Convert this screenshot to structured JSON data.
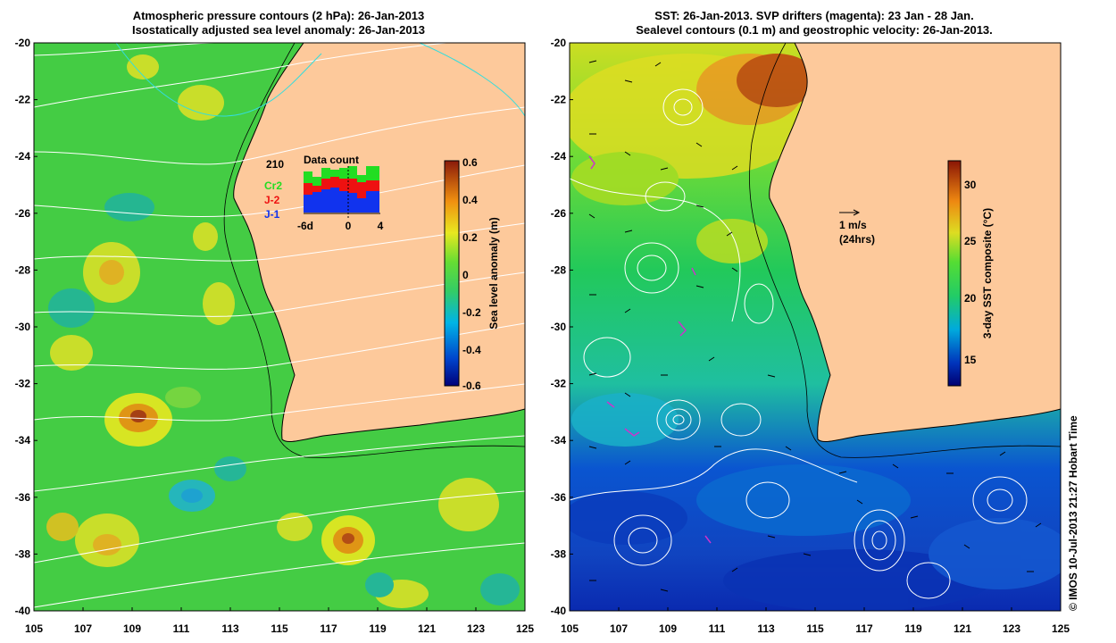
{
  "left_panel": {
    "title_line1": "Atmospheric pressure contours (2 hPa): 26-Jan-2013",
    "title_line2": "Isostatically adjusted sea level anomaly: 26-Jan-2013",
    "colorbar": {
      "label": "Sea level anomaly (m)",
      "ticks": [
        "0.6",
        "0.4",
        "0.2",
        "0",
        "-0.2",
        "-0.4",
        "-0.6"
      ],
      "range": [
        -0.6,
        0.6
      ]
    },
    "data_count_inset": {
      "title": "Data count",
      "ymax_label": "210",
      "x_tick_labels": [
        "-6d",
        "0",
        "4"
      ],
      "legend": [
        {
          "label": "Cr2",
          "color": "#22dd22"
        },
        {
          "label": "J-2",
          "color": "#ee1111"
        },
        {
          "label": "J-1",
          "color": "#1133ee"
        }
      ]
    }
  },
  "right_panel": {
    "title_line1": "SST: 26-Jan-2013. SVP drifters (magenta): 23 Jan - 28 Jan.",
    "title_line2": "Sealevel contours (0.1 m) and geostrophic velocity: 26-Jan-2013.",
    "velocity_scale_label": "1 m/s",
    "velocity_scale_sublabel": "(24hrs)",
    "colorbar": {
      "label": "3-day SST composite (°C)",
      "ticks": [
        "30",
        "25",
        "20",
        "15"
      ],
      "range": [
        12,
        32
      ]
    }
  },
  "axes": {
    "x_ticks": [
      "105",
      "107",
      "109",
      "111",
      "113",
      "115",
      "117",
      "119",
      "121",
      "123",
      "125"
    ],
    "y_ticks": [
      "-20",
      "-22",
      "-24",
      "-26",
      "-28",
      "-30",
      "-32",
      "-34",
      "-36",
      "-38",
      "-40"
    ]
  },
  "credit": "© IMOS 10-Jul-2013 21:27 Hobart Time",
  "colors": {
    "land": "#fdc99b",
    "ssh_base": "#33cc33",
    "sst_base": "#22cc55",
    "contour": "#ffffff"
  }
}
